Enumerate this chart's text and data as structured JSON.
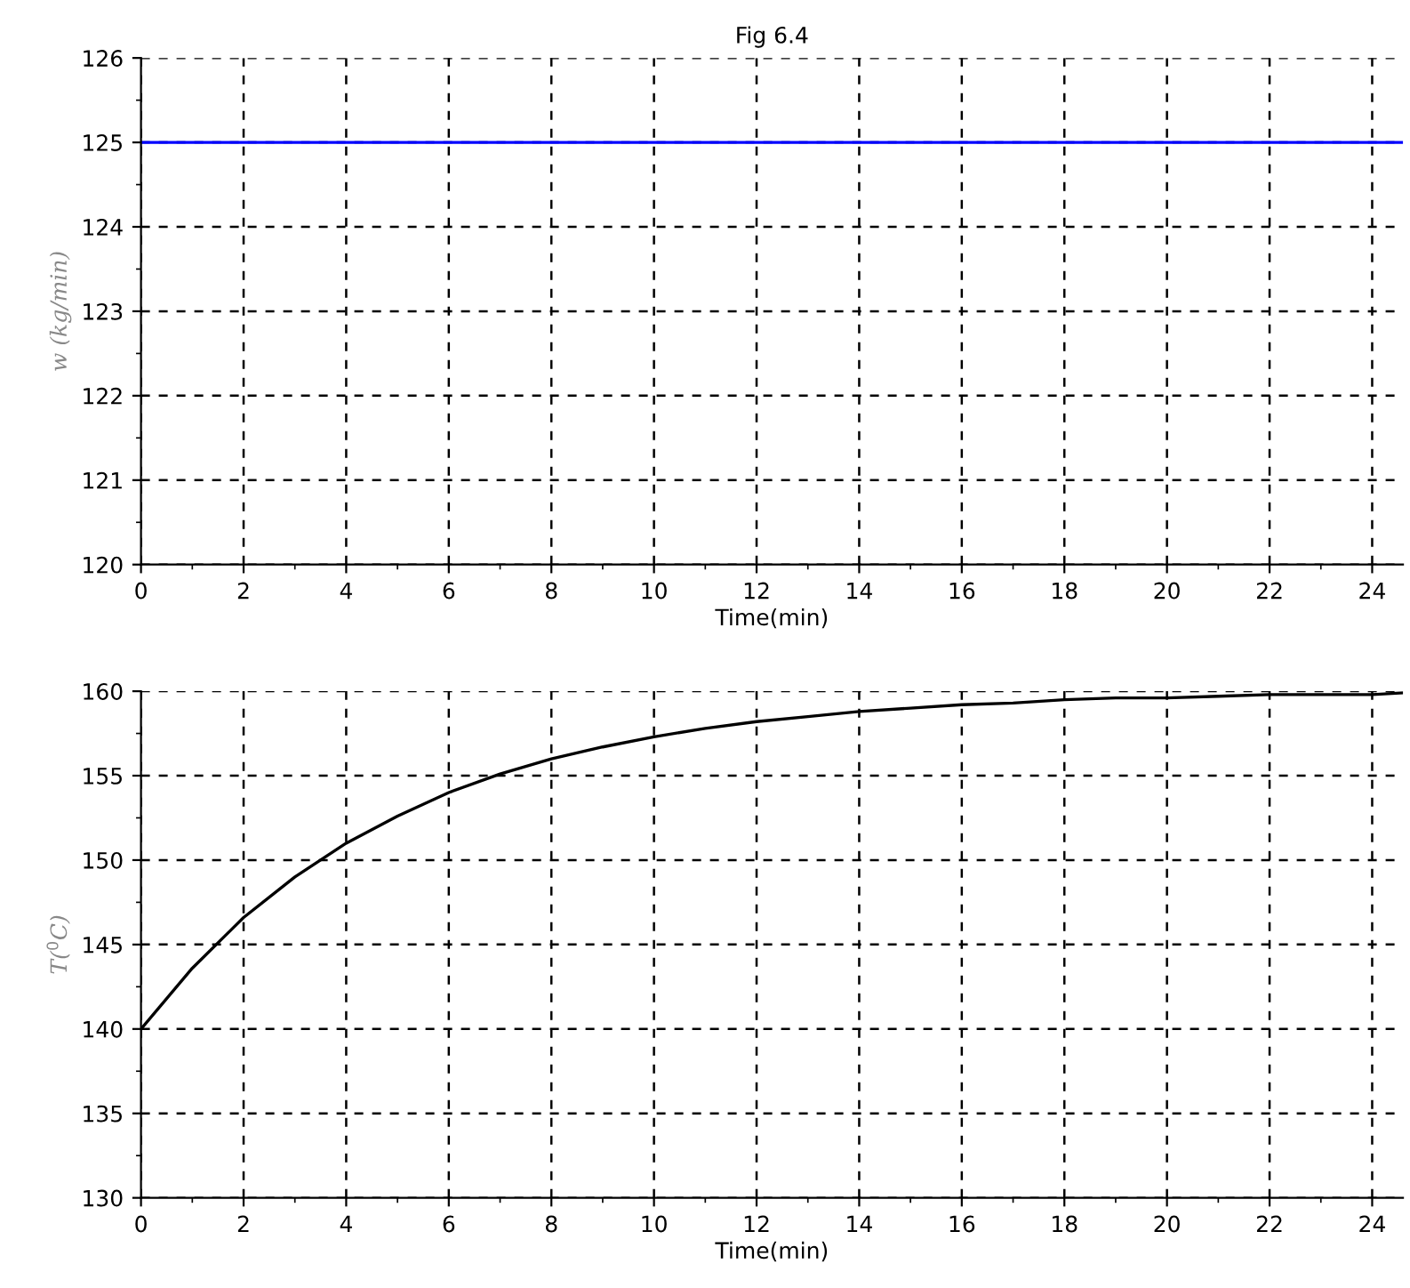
{
  "chart_data": [
    {
      "type": "line",
      "title": "Fig 6.4",
      "xlabel": "Time(min)",
      "ylabel": "w (kg/min)",
      "x": [
        0,
        24.6
      ],
      "series": [
        {
          "color": "#0000ff",
          "values": [
            125,
            125
          ]
        }
      ],
      "xlim": [
        0,
        24.6
      ],
      "xticks": [
        0,
        2,
        4,
        6,
        8,
        10,
        12,
        14,
        16,
        18,
        20,
        22,
        24
      ],
      "ylim": [
        120,
        126
      ],
      "yticks": [
        120,
        121,
        122,
        123,
        124,
        125,
        126
      ],
      "grid": true,
      "line_style": "solid"
    },
    {
      "type": "line",
      "xlabel": "Time(min)",
      "ylabel": "T($^{0}$C)",
      "x": [
        0,
        1,
        2,
        3,
        4,
        5,
        6,
        7,
        8,
        9,
        10,
        11,
        12,
        13,
        14,
        15,
        16,
        17,
        18,
        19,
        20,
        21,
        22,
        23,
        24,
        24.6
      ],
      "series": [
        {
          "color": "#000000",
          "values": [
            140,
            143.6,
            146.6,
            149.0,
            151.0,
            152.6,
            154.0,
            155.1,
            156.0,
            156.7,
            157.3,
            157.8,
            158.2,
            158.5,
            158.8,
            159.0,
            159.2,
            159.3,
            159.5,
            159.6,
            159.6,
            159.7,
            159.8,
            159.8,
            159.8,
            159.9
          ]
        }
      ],
      "xlim": [
        0,
        24.6
      ],
      "xticks": [
        0,
        2,
        4,
        6,
        8,
        10,
        12,
        14,
        16,
        18,
        20,
        22,
        24
      ],
      "ylim": [
        130,
        160
      ],
      "yticks": [
        130,
        135,
        140,
        145,
        150,
        155,
        160
      ],
      "grid": true,
      "line_style": "solid"
    }
  ]
}
